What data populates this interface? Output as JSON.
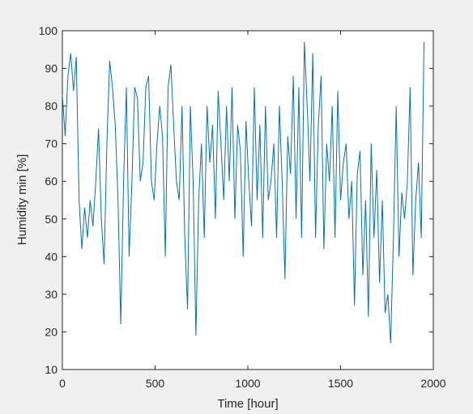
{
  "chart_data": {
    "type": "line",
    "x_label": "Time [hour]",
    "y_label": "Humidity min [%]",
    "x": [
      0,
      15,
      30,
      45,
      60,
      75,
      90,
      105,
      120,
      135,
      150,
      165,
      180,
      195,
      210,
      225,
      240,
      255,
      270,
      285,
      300,
      315,
      330,
      345,
      360,
      375,
      390,
      405,
      420,
      435,
      450,
      465,
      480,
      495,
      510,
      525,
      540,
      555,
      570,
      585,
      600,
      615,
      630,
      645,
      660,
      675,
      690,
      705,
      720,
      735,
      750,
      765,
      780,
      795,
      810,
      825,
      840,
      855,
      870,
      885,
      900,
      915,
      930,
      945,
      960,
      975,
      990,
      1005,
      1020,
      1035,
      1050,
      1065,
      1080,
      1095,
      1110,
      1125,
      1140,
      1155,
      1170,
      1185,
      1200,
      1215,
      1230,
      1245,
      1260,
      1275,
      1290,
      1305,
      1320,
      1335,
      1350,
      1365,
      1380,
      1395,
      1410,
      1425,
      1440,
      1455,
      1470,
      1485,
      1500,
      1515,
      1530,
      1545,
      1560,
      1575,
      1590,
      1605,
      1620,
      1635,
      1650,
      1665,
      1680,
      1695,
      1710,
      1725,
      1740,
      1755,
      1770,
      1785,
      1800,
      1815,
      1830,
      1845,
      1860,
      1875,
      1890,
      1905,
      1920,
      1935,
      1950
    ],
    "series": [
      {
        "color": "#0072bd",
        "values": [
          83,
          72,
          88,
          94,
          84,
          93,
          55,
          42,
          53,
          45,
          55,
          48,
          60,
          74,
          50,
          38,
          70,
          92,
          85,
          75,
          55,
          22,
          60,
          85,
          40,
          60,
          85,
          82,
          60,
          65,
          85,
          88,
          60,
          55,
          70,
          80,
          72,
          40,
          85,
          91,
          75,
          60,
          55,
          80,
          45,
          26,
          80,
          60,
          19,
          55,
          70,
          45,
          80,
          65,
          75,
          50,
          84,
          70,
          55,
          80,
          60,
          85,
          50,
          75,
          68,
          40,
          76,
          60,
          48,
          85,
          55,
          75,
          45,
          80,
          55,
          60,
          70,
          45,
          80,
          60,
          34,
          72,
          62,
          88,
          50,
          85,
          45,
          97,
          80,
          60,
          94,
          45,
          75,
          88,
          42,
          70,
          60,
          80,
          45,
          84,
          55,
          65,
          70,
          50,
          60,
          27,
          62,
          68,
          35,
          55,
          24,
          70,
          45,
          63,
          33,
          55,
          25,
          30,
          17,
          45,
          80,
          40,
          57,
          50,
          60,
          85,
          35,
          55,
          65,
          45,
          97
        ]
      }
    ],
    "xlim": [
      0,
      2000
    ],
    "xticks": [
      0,
      500,
      1000,
      1500,
      2000
    ],
    "ylim": [
      10,
      100
    ],
    "yticks": [
      10,
      20,
      30,
      40,
      50,
      60,
      70,
      80,
      90,
      100
    ],
    "grid": false
  }
}
